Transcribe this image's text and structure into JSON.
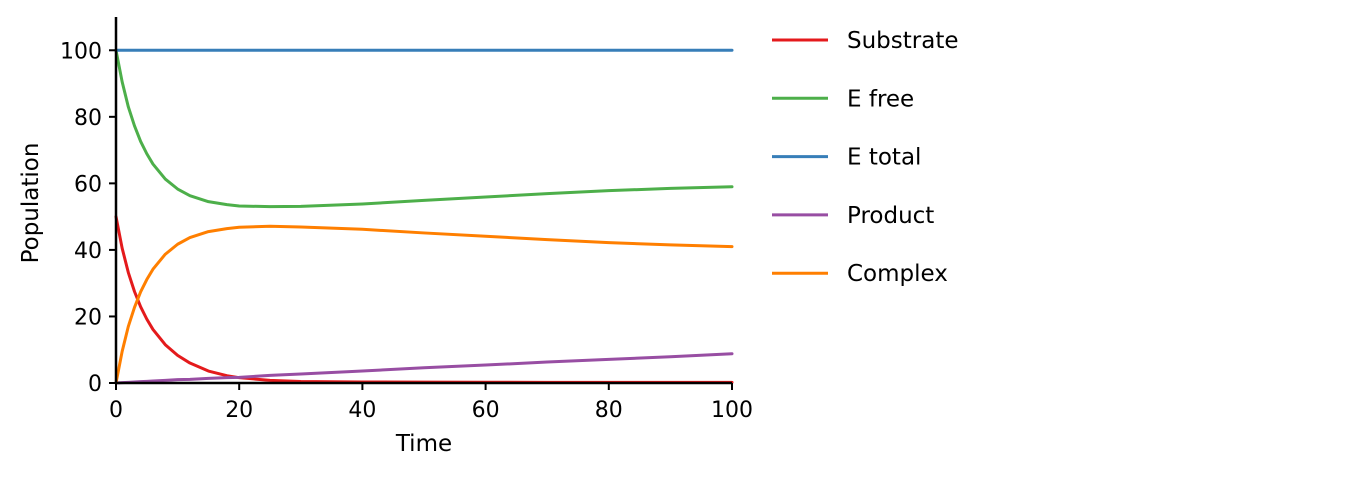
{
  "chart_data": {
    "type": "line",
    "xlabel": "Time",
    "ylabel": "Population",
    "xlim": [
      0,
      100
    ],
    "ylim": [
      0,
      110
    ],
    "xticks": [
      0,
      20,
      40,
      60,
      80,
      100
    ],
    "yticks": [
      0,
      20,
      40,
      60,
      80,
      100
    ],
    "grid": false,
    "legend_position": "right, outside plot",
    "x": [
      0,
      1,
      2,
      3,
      4,
      5,
      6,
      8,
      10,
      12,
      15,
      18,
      20,
      25,
      30,
      40,
      50,
      60,
      70,
      80,
      90,
      100
    ],
    "series": [
      {
        "name": "Substrate",
        "color": "#e41a1c",
        "values": [
          50,
          40.5,
          33.2,
          27.5,
          22.9,
          19.2,
          16.1,
          11.5,
          8.3,
          6.0,
          3.6,
          2.2,
          1.6,
          0.8,
          0.45,
          0.3,
          0.25,
          0.22,
          0.2,
          0.2,
          0.2,
          0.2
        ]
      },
      {
        "name": "E free",
        "color": "#4daf4a",
        "values": [
          100,
          90.5,
          83.0,
          77.3,
          72.6,
          68.9,
          65.8,
          61.3,
          58.3,
          56.3,
          54.5,
          53.6,
          53.2,
          53.0,
          53.1,
          53.8,
          54.9,
          55.9,
          56.9,
          57.8,
          58.5,
          59.0
        ]
      },
      {
        "name": "E total",
        "color": "#377eb8",
        "values": [
          100,
          100,
          100,
          100,
          100,
          100,
          100,
          100,
          100,
          100,
          100,
          100,
          100,
          100,
          100,
          100,
          100,
          100,
          100,
          100,
          100,
          100
        ]
      },
      {
        "name": "Product",
        "color": "#984ea3",
        "values": [
          0,
          0.1,
          0.2,
          0.3,
          0.4,
          0.5,
          0.6,
          0.8,
          1.0,
          1.1,
          1.4,
          1.6,
          1.7,
          2.3,
          2.7,
          3.6,
          4.6,
          5.4,
          6.3,
          7.1,
          7.9,
          8.8
        ]
      },
      {
        "name": "Complex",
        "color": "#ff7f00",
        "values": [
          0,
          9.5,
          17.0,
          22.7,
          27.4,
          31.1,
          34.2,
          38.7,
          41.7,
          43.7,
          45.5,
          46.4,
          46.8,
          47.1,
          46.9,
          46.2,
          45.1,
          44.1,
          43.1,
          42.2,
          41.5,
          41.0
        ]
      }
    ]
  }
}
